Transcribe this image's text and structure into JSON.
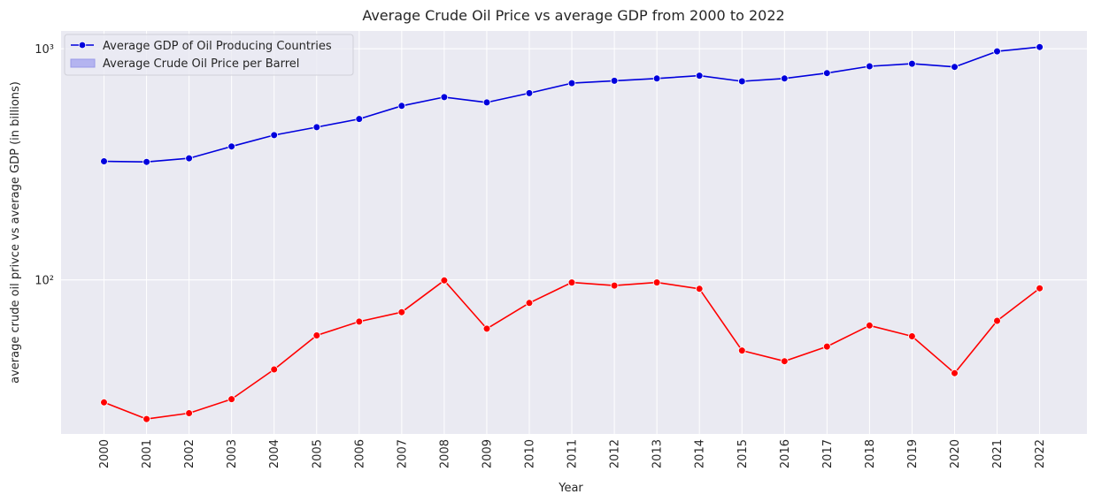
{
  "chart_data": {
    "type": "line",
    "title": "Average Crude Oil Price vs average GDP from 2000 to 2022",
    "xlabel": "Year",
    "ylabel": "average crude oil privce vs average GDP (in billions)",
    "yscale": "log",
    "ylim": [
      21,
      1200
    ],
    "ytick_labels": [
      "10²",
      "10³"
    ],
    "grid": true,
    "legend_position": "top-left",
    "categories": [
      "2000",
      "2001",
      "2002",
      "2003",
      "2004",
      "2005",
      "2006",
      "2007",
      "2008",
      "2009",
      "2010",
      "2011",
      "2012",
      "2013",
      "2014",
      "2015",
      "2016",
      "2017",
      "2018",
      "2019",
      "2020",
      "2021",
      "2022"
    ],
    "series": [
      {
        "name": "Average GDP of Oil Producing Countries",
        "color": "#0000dd",
        "legend_marker": "line-dot",
        "values": [
          326,
          324,
          336,
          378,
          423,
          458,
          497,
          566,
          618,
          586,
          643,
          710,
          727,
          744,
          765,
          723,
          744,
          785,
          840,
          862,
          835,
          975,
          1018
        ]
      },
      {
        "name": "Average Crude Oil Price per Barrel",
        "color": "#ff0000",
        "legend_marker": "patch",
        "legend_color": "#b4b4f0",
        "values": [
          29.5,
          25,
          26.5,
          30.5,
          41,
          57.5,
          66,
          72.5,
          99.5,
          61.5,
          79.5,
          97.5,
          94.5,
          97.5,
          91.5,
          49.5,
          44.5,
          51.5,
          63.5,
          57,
          39.5,
          66.5,
          92
        ]
      }
    ]
  }
}
